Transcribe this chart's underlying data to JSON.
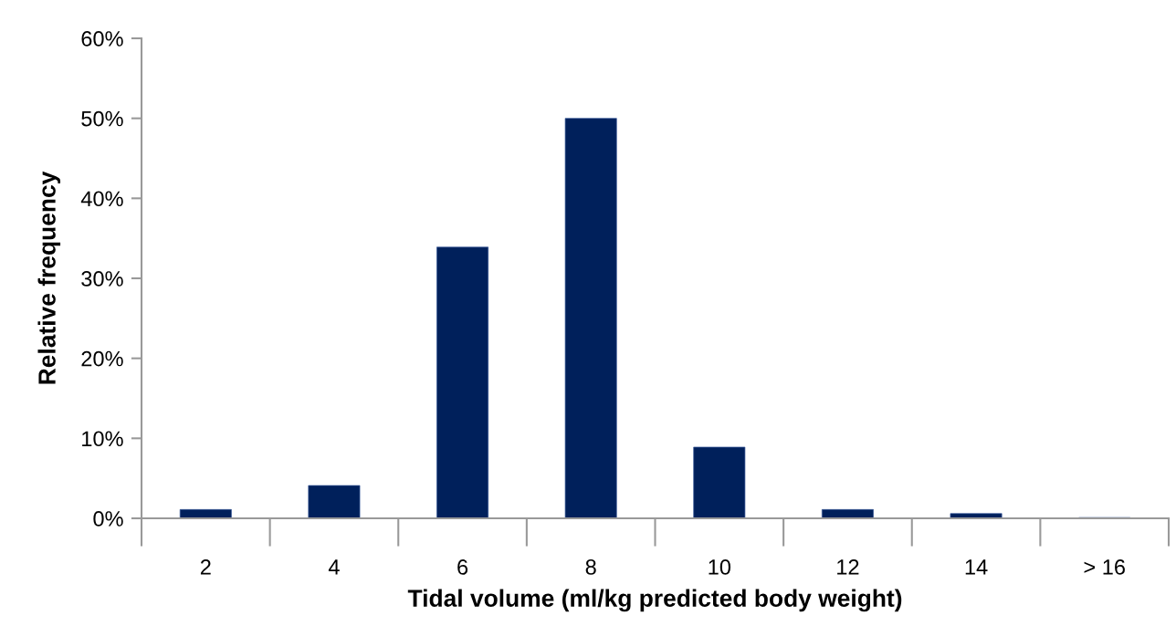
{
  "chart_data": {
    "type": "bar",
    "xlabel": "Tidal volume (ml/kg predicted body weight)",
    "ylabel": "Relative frequency",
    "categories": [
      "2",
      "4",
      "6",
      "8",
      "10",
      "12",
      "14",
      "> 16"
    ],
    "values": [
      1.1,
      4.1,
      33.9,
      50,
      8.9,
      1.1,
      0.6,
      0.1
    ],
    "color": "#00205b",
    "ylim": [
      0,
      60
    ],
    "yticks": [
      {
        "value": 0,
        "label": "0%"
      },
      {
        "value": 10,
        "label": "10%"
      },
      {
        "value": 20,
        "label": "20%"
      },
      {
        "value": 30,
        "label": "30%"
      },
      {
        "value": 40,
        "label": "40%"
      },
      {
        "value": 50,
        "label": "50%"
      },
      {
        "value": 60,
        "label": "60%"
      }
    ],
    "grid": false,
    "legend": false
  }
}
